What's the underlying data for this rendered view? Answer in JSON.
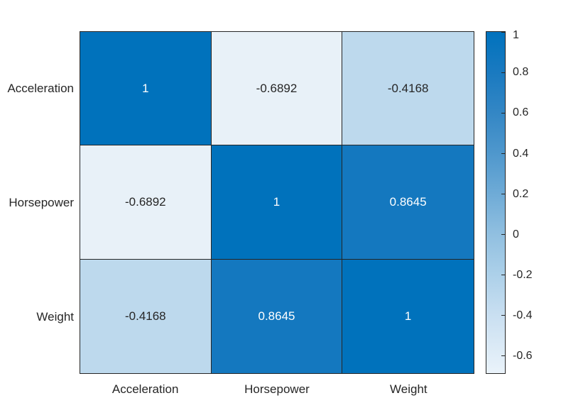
{
  "chart_data": {
    "type": "heatmap",
    "title": "",
    "xlabel": "",
    "ylabel": "",
    "x_categories": [
      "Acceleration",
      "Horsepower",
      "Weight"
    ],
    "y_categories": [
      "Acceleration",
      "Horsepower",
      "Weight"
    ],
    "matrix": [
      [
        1,
        -0.6892,
        -0.4168
      ],
      [
        -0.6892,
        1,
        0.8645
      ],
      [
        -0.4168,
        0.8645,
        1
      ]
    ],
    "cell_labels": [
      [
        "1",
        "-0.6892",
        "-0.4168"
      ],
      [
        "-0.6892",
        "1",
        "0.8645"
      ],
      [
        "-0.4168",
        "0.8645",
        "1"
      ]
    ],
    "cell_colors": [
      [
        "#0072BC",
        "#E8F1F8",
        "#BDD9ED"
      ],
      [
        "#E8F1F8",
        "#0072BC",
        "#1478BF"
      ],
      [
        "#BDD9ED",
        "#1478BF",
        "#0072BC"
      ]
    ],
    "cell_text_colors": [
      [
        "#FFFFFF",
        "#262626",
        "#262626"
      ],
      [
        "#262626",
        "#FFFFFF",
        "#FFFFFF"
      ],
      [
        "#262626",
        "#FFFFFF",
        "#FFFFFF"
      ]
    ],
    "grid_on": true,
    "grid_color": "#262626",
    "background_color": "#FFFFFF",
    "legend_position": "colorbar-right",
    "colorbar": {
      "vmin": -0.6892,
      "vmax": 1,
      "tick_labels": [
        "1",
        "0.8",
        "0.6",
        "0.4",
        "0.2",
        "0",
        "-0.2",
        "-0.4",
        "-0.6"
      ],
      "tick_values": [
        1,
        0.8,
        0.6,
        0.4,
        0.2,
        0,
        -0.2,
        -0.4,
        -0.6
      ],
      "gradient_stops": [
        {
          "at": 0,
          "color": "#0072BD"
        },
        {
          "at": 12,
          "color": "#1A7AC0"
        },
        {
          "at": 24,
          "color": "#3487C5"
        },
        {
          "at": 36,
          "color": "#5098CD"
        },
        {
          "at": 48,
          "color": "#70ACD7"
        },
        {
          "at": 59,
          "color": "#90BFE0"
        },
        {
          "at": 71,
          "color": "#ACD0E9"
        },
        {
          "at": 83,
          "color": "#C9DFF1"
        },
        {
          "at": 100,
          "color": "#EAF3FA"
        }
      ]
    }
  }
}
